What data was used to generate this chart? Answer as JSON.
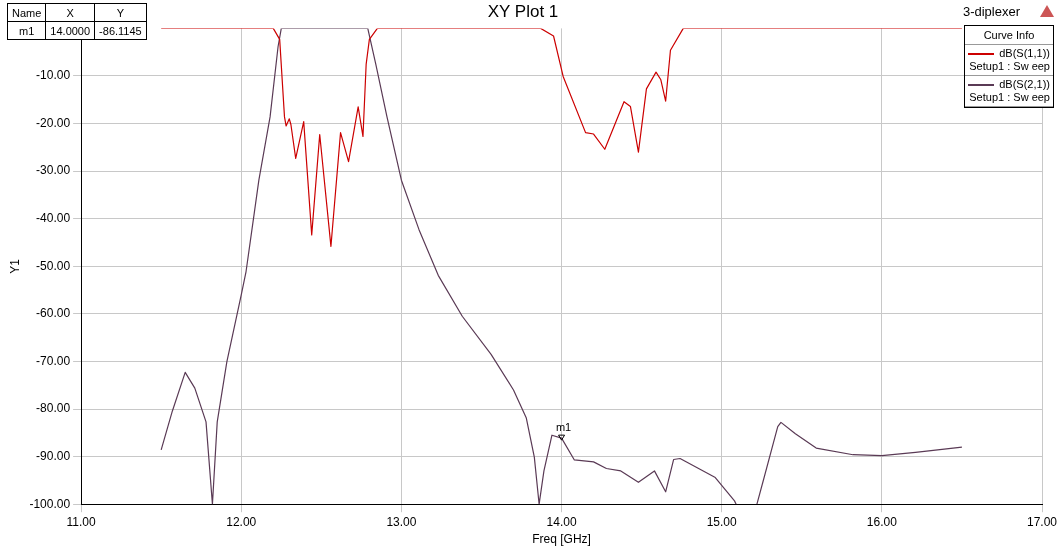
{
  "chart_data": {
    "type": "line",
    "title": "XY Plot 1",
    "xlabel": "Freq [GHz]",
    "ylabel": "Y1",
    "legend_title": "Curve Info",
    "legend": "top right",
    "grid": true,
    "marker": "none",
    "line_style": "solid",
    "xlim": [
      11,
      17
    ],
    "xticks": [
      {
        "value": 11,
        "label": "11.00"
      },
      {
        "value": 12,
        "label": "12.00"
      },
      {
        "value": 13,
        "label": "13.00"
      },
      {
        "value": 14,
        "label": "14.00"
      },
      {
        "value": 15,
        "label": "15.00"
      },
      {
        "value": 16,
        "label": "16.00"
      },
      {
        "value": 17,
        "label": "17.00"
      }
    ],
    "ylim": [
      -100,
      0
    ],
    "yticks": [
      {
        "value": -100,
        "label": "-100.00"
      },
      {
        "value": -90,
        "label": "-90.00"
      },
      {
        "value": -80,
        "label": "-80.00"
      },
      {
        "value": -70,
        "label": "-70.00"
      },
      {
        "value": -60,
        "label": "-60.00"
      },
      {
        "value": -50,
        "label": "-50.00"
      },
      {
        "value": -40,
        "label": "-40.00"
      },
      {
        "value": -30,
        "label": "-30.00"
      },
      {
        "value": -20,
        "label": "-20.00"
      },
      {
        "value": -10,
        "label": "-10.00"
      }
    ],
    "series": [
      {
        "name": "dB(S(1,1)) Setup1 : Sw eep",
        "color": "#cc0000",
        "x": [
          11.5,
          12.2,
          12.24,
          12.27,
          12.28,
          12.3,
          12.31,
          12.34,
          12.39,
          12.44,
          12.49,
          12.56,
          12.62,
          12.67,
          12.73,
          12.76,
          12.78,
          12.8,
          12.85,
          13.87,
          13.95,
          14.01,
          14.15,
          14.2,
          14.27,
          14.39,
          14.43,
          14.48,
          14.53,
          14.59,
          14.62,
          14.65,
          14.68,
          14.76,
          16.5
        ],
        "values": [
          0,
          0,
          -2.3,
          -18.6,
          -20.5,
          -19,
          -20.2,
          -27.3,
          -19.6,
          -43.4,
          -22.3,
          -45.8,
          -21.9,
          -28,
          -16.5,
          -22.7,
          -7.5,
          -2.3,
          0,
          0,
          -1.6,
          -10.1,
          -21.9,
          -22.2,
          -25.4,
          -15.4,
          -16.4,
          -26,
          -12.7,
          -9.2,
          -10.8,
          -15.3,
          -4.6,
          0,
          0
        ]
      },
      {
        "name": "dB(S(2,1)) Setup1 : Sw eep",
        "color": "#5a3a55",
        "x": [
          11.5,
          11.57,
          11.65,
          11.71,
          11.78,
          11.82,
          11.85,
          11.91,
          12.0,
          12.03,
          12.11,
          12.18,
          12.23,
          12.25,
          12.79,
          12.84,
          12.91,
          13.0,
          13.11,
          13.23,
          13.38,
          13.56,
          13.7,
          13.78,
          13.83,
          13.86,
          13.89,
          13.94,
          14.0,
          14.08,
          14.2,
          14.28,
          14.37,
          14.48,
          14.58,
          14.65,
          14.7,
          14.74,
          14.96,
          15.08,
          15.09,
          15.15,
          15.22,
          15.35,
          15.37,
          15.46,
          15.59,
          15.82,
          16.0,
          16.21,
          16.5
        ],
        "values": [
          -88.6,
          -80.4,
          -72.3,
          -75.6,
          -82.7,
          -100,
          -82.7,
          -70.1,
          -56,
          -51.1,
          -31.9,
          -18.6,
          -3.8,
          0,
          0,
          -7.5,
          -18.6,
          -31.9,
          -42.3,
          -51.9,
          -60.5,
          -68.5,
          -76,
          -81.9,
          -90.1,
          -100,
          -93,
          -85.5,
          -86.1145,
          -90.7,
          -91.1,
          -92.5,
          -93,
          -95.4,
          -93,
          -97.4,
          -90.6,
          -90.4,
          -94.4,
          -99.3,
          -100,
          null,
          -100,
          -83.7,
          -82.8,
          -85.2,
          -88.2,
          -89.6,
          -89.8,
          -89.1,
          -88
        ]
      }
    ],
    "annotations": [
      "3-diplexer",
      {
        "text": "m1",
        "x": 14,
        "y": -86.1145
      },
      "Name",
      "X",
      "Y",
      "m1",
      "14.0000",
      "-86.1145"
    ]
  }
}
